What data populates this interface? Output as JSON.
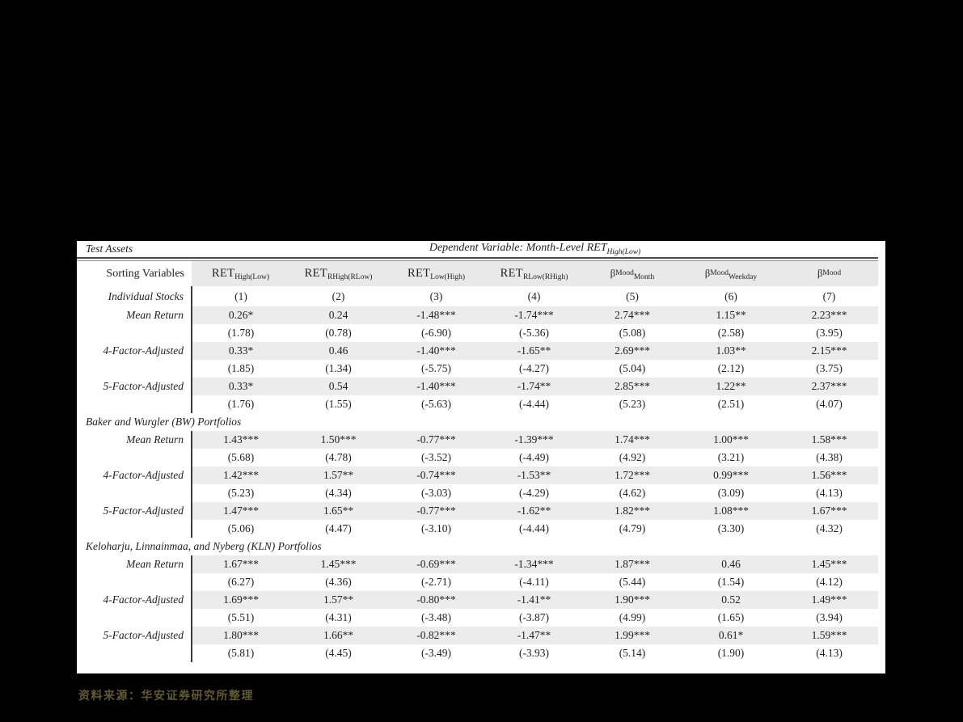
{
  "table": {
    "corner_label": "Test Assets",
    "title_main": "Dependent Variable: Month-Level RET",
    "title_sub": "High(Low)",
    "sorting_label": "Sorting Variables",
    "columns": [
      {
        "prefix": "RET",
        "sup": "",
        "sub": "High(Low)",
        "style": "ret"
      },
      {
        "prefix": "RET",
        "sup": "",
        "sub": "RHigh(RLow)",
        "style": "ret"
      },
      {
        "prefix": "RET",
        "sup": "",
        "sub": "Low(High)",
        "style": "ret"
      },
      {
        "prefix": "RET",
        "sup": "",
        "sub": "RLow(RHigh)",
        "style": "ret"
      },
      {
        "prefix": "β",
        "sup": "Mood",
        "sub": "Month",
        "style": "beta"
      },
      {
        "prefix": "β",
        "sup": "Mood",
        "sub": "Weekday",
        "style": "beta"
      },
      {
        "prefix": "β",
        "sup": "Mood",
        "sub": "",
        "style": "beta"
      }
    ],
    "sections": [
      {
        "title": "Individual Stocks",
        "col_numbers": [
          "(1)",
          "(2)",
          "(3)",
          "(4)",
          "(5)",
          "(6)",
          "(7)"
        ],
        "rows": [
          {
            "label": "Mean Return",
            "values": [
              "0.26*",
              "0.24",
              "-1.48***",
              "-1.74***",
              "2.74***",
              "1.15**",
              "2.23***"
            ],
            "tstats": [
              "(1.78)",
              "(0.78)",
              "(-6.90)",
              "(-5.36)",
              "(5.08)",
              "(2.58)",
              "(3.95)"
            ]
          },
          {
            "label": "4-Factor-Adjusted",
            "values": [
              "0.33*",
              "0.46",
              "-1.40***",
              "-1.65**",
              "2.69***",
              "1.03**",
              "2.15***"
            ],
            "tstats": [
              "(1.85)",
              "(1.34)",
              "(-5.75)",
              "(-4.27)",
              "(5.04)",
              "(2.12)",
              "(3.75)"
            ]
          },
          {
            "label": "5-Factor-Adjusted",
            "values": [
              "0.33*",
              "0.54",
              "-1.40***",
              "-1.74**",
              "2.85***",
              "1.22**",
              "2.37***"
            ],
            "tstats": [
              "(1.76)",
              "(1.55)",
              "(-5.63)",
              "(-4.44)",
              "(5.23)",
              "(2.51)",
              "(4.07)"
            ]
          }
        ]
      },
      {
        "title": "Baker and Wurgler (BW) Portfolios",
        "rows": [
          {
            "label": "Mean Return",
            "values": [
              "1.43***",
              "1.50***",
              "-0.77***",
              "-1.39***",
              "1.74***",
              "1.00***",
              "1.58***"
            ],
            "tstats": [
              "(5.68)",
              "(4.78)",
              "(-3.52)",
              "(-4.49)",
              "(4.92)",
              "(3.21)",
              "(4.38)"
            ]
          },
          {
            "label": "4-Factor-Adjusted",
            "values": [
              "1.42***",
              "1.57**",
              "-0.74***",
              "-1.53**",
              "1.72***",
              "0.99***",
              "1.56***"
            ],
            "tstats": [
              "(5.23)",
              "(4.34)",
              "(-3.03)",
              "(-4.29)",
              "(4.62)",
              "(3.09)",
              "(4.13)"
            ]
          },
          {
            "label": "5-Factor-Adjusted",
            "values": [
              "1.47***",
              "1.65**",
              "-0.77***",
              "-1.62**",
              "1.82***",
              "1.08***",
              "1.67***"
            ],
            "tstats": [
              "(5.06)",
              "(4.47)",
              "(-3.10)",
              "(-4.44)",
              "(4.79)",
              "(3.30)",
              "(4.32)"
            ]
          }
        ]
      },
      {
        "title": "Keloharju, Linnainmaa, and Nyberg (KLN) Portfolios",
        "rows": [
          {
            "label": "Mean Return",
            "values": [
              "1.67***",
              "1.45***",
              "-0.69***",
              "-1.34***",
              "1.87***",
              "0.46",
              "1.45***"
            ],
            "tstats": [
              "(6.27)",
              "(4.36)",
              "(-2.71)",
              "(-4.11)",
              "(5.44)",
              "(1.54)",
              "(4.12)"
            ]
          },
          {
            "label": "4-Factor-Adjusted",
            "values": [
              "1.69***",
              "1.57**",
              "-0.80***",
              "-1.41**",
              "1.90***",
              "0.52",
              "1.49***"
            ],
            "tstats": [
              "(5.51)",
              "(4.31)",
              "(-3.48)",
              "(-3.87)",
              "(4.99)",
              "(1.65)",
              "(3.94)"
            ]
          },
          {
            "label": "5-Factor-Adjusted",
            "values": [
              "1.80***",
              "1.66**",
              "-0.82***",
              "-1.47**",
              "1.99***",
              "0.61*",
              "1.59***"
            ],
            "tstats": [
              "(5.81)",
              "(4.45)",
              "(-3.49)",
              "(-3.93)",
              "(5.14)",
              "(1.90)",
              "(4.13)"
            ]
          }
        ]
      }
    ]
  },
  "footer": {
    "source_text": "资料来源：华安证券研究所整理"
  },
  "colors": {
    "page_bg": "#000000",
    "table_bg": "#ffffff",
    "row_shade": "#ececec",
    "header_shade": "#e9e9e9",
    "footer_text": "#615935"
  }
}
